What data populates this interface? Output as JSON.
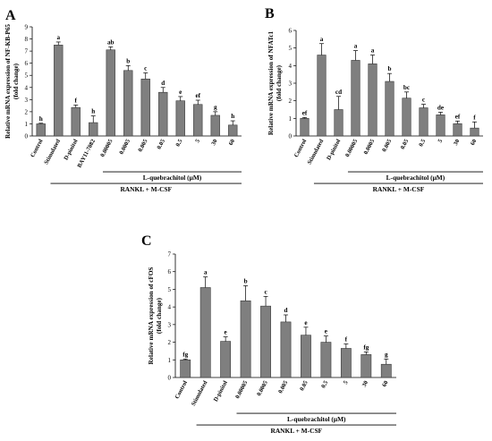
{
  "chart_data": [
    {
      "type": "bar",
      "panel_label": "A",
      "ylabel_line1": "Relative mRNA expression of NF-KB-P65",
      "ylabel_line2": "(fold change)",
      "ylim": [
        0,
        9
      ],
      "yticks": [
        "0",
        "1",
        "2",
        "3",
        "4",
        "5",
        "6",
        "7",
        "8",
        "9"
      ],
      "categories": [
        "Control",
        "Stimulated",
        "D-pinitol",
        "BAY11-7082",
        "0.00005",
        "0.0005",
        "0.005",
        "0.05",
        "0.5",
        "5",
        "30",
        "60"
      ],
      "values": [
        1.0,
        7.5,
        2.35,
        1.1,
        7.1,
        5.4,
        4.7,
        3.6,
        2.9,
        2.6,
        1.7,
        0.9
      ],
      "errors": [
        0.05,
        0.25,
        0.2,
        0.55,
        0.25,
        0.4,
        0.5,
        0.4,
        0.35,
        0.35,
        0.3,
        0.35
      ],
      "sig_letters": [
        "h",
        "a",
        "f",
        "h",
        "ab",
        "b",
        "c",
        "d",
        "e",
        "ef",
        "g",
        "h"
      ],
      "bracket_label": "L-quebrachitol (μM)",
      "bracket_from_index": 4,
      "footer_label": "RANKL + M-CSF",
      "footer_from_index": 1,
      "grid": false
    },
    {
      "type": "bar",
      "panel_label": "B",
      "ylabel_line1": "Relative mRNA expression of NFATc1",
      "ylabel_line2": "(fold change)",
      "ylim": [
        0,
        6
      ],
      "yticks": [
        "0",
        "1",
        "2",
        "3",
        "4",
        "5",
        "6"
      ],
      "categories": [
        "Control",
        "Stimulated",
        "D-pinitol",
        "0.00005",
        "0.0005",
        "0.005",
        "0.05",
        "0.5",
        "5",
        "30",
        "60"
      ],
      "values": [
        1.0,
        4.6,
        1.5,
        4.3,
        4.1,
        3.1,
        2.15,
        1.6,
        1.2,
        0.7,
        0.45
      ],
      "errors": [
        0.05,
        0.65,
        0.75,
        0.55,
        0.5,
        0.45,
        0.35,
        0.2,
        0.15,
        0.15,
        0.35
      ],
      "sig_letters": [
        "ef",
        "a",
        "cd",
        "a",
        "a",
        "b",
        "bc",
        "c",
        "de",
        "ef",
        "f"
      ],
      "bracket_label": "L-quebrachitol (μM)",
      "bracket_from_index": 3,
      "footer_label": "RANKL + M-CSF",
      "footer_from_index": 1,
      "grid": false
    },
    {
      "type": "bar",
      "panel_label": "C",
      "ylabel_line1": "Relative mRNA expression of cFOS",
      "ylabel_line2": "(fold change)",
      "ylim": [
        0,
        7
      ],
      "yticks": [
        "0",
        "1",
        "2",
        "3",
        "4",
        "5",
        "6",
        "7"
      ],
      "categories": [
        "Control",
        "Stimulated",
        "D-pinitol",
        "0.00005",
        "0.0005",
        "0.005",
        "0.05",
        "0.5",
        "5",
        "30",
        "60"
      ],
      "values": [
        1.0,
        5.1,
        2.05,
        4.35,
        4.05,
        3.15,
        2.4,
        2.0,
        1.65,
        1.3,
        0.75
      ],
      "errors": [
        0.05,
        0.6,
        0.25,
        0.85,
        0.55,
        0.4,
        0.45,
        0.35,
        0.25,
        0.15,
        0.3
      ],
      "sig_letters": [
        "fg",
        "a",
        "e",
        "b",
        "c",
        "d",
        "e",
        "e",
        "f",
        "fg",
        "g"
      ],
      "bracket_label": "L-quebrachitol (μM)",
      "bracket_from_index": 3,
      "footer_label": "RANKL + M-CSF",
      "footer_from_index": 1,
      "grid": false
    }
  ]
}
